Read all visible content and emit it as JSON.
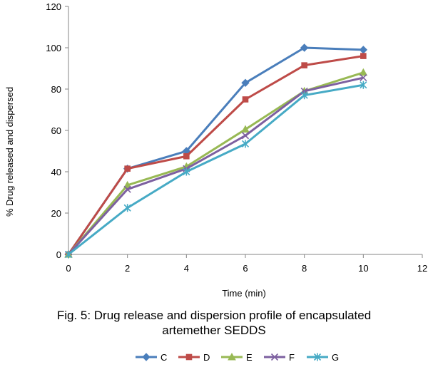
{
  "chart_data": {
    "type": "line",
    "xlabel": "Time (min)",
    "ylabel": "% Drug released and dispersed",
    "xlim": [
      0,
      12
    ],
    "ylim": [
      0,
      120
    ],
    "x_ticks": [
      0,
      2,
      4,
      6,
      8,
      10,
      12
    ],
    "y_ticks": [
      0,
      20,
      40,
      60,
      80,
      100,
      120
    ],
    "grid": false,
    "legend_position": "bottom",
    "x": [
      0,
      2,
      4,
      6,
      8,
      10
    ],
    "series": [
      {
        "name": "C",
        "color": "#4a7ebb",
        "marker": "diamond",
        "values": [
          0,
          41.5,
          50,
          83,
          100,
          99
        ]
      },
      {
        "name": "D",
        "color": "#be4b48",
        "marker": "square",
        "values": [
          0,
          41.5,
          47.5,
          75,
          91.5,
          96
        ]
      },
      {
        "name": "E",
        "color": "#98b954",
        "marker": "triangle",
        "values": [
          0,
          33.5,
          42.5,
          60.5,
          79,
          88
        ]
      },
      {
        "name": "F",
        "color": "#7d60a0",
        "marker": "x",
        "values": [
          0,
          31.5,
          41.5,
          57.5,
          79,
          85.5
        ]
      },
      {
        "name": "G",
        "color": "#46aac5",
        "marker": "star",
        "values": [
          0,
          22.5,
          40,
          53.5,
          77,
          82
        ]
      }
    ]
  },
  "caption": {
    "line1": "Fig. 5: Drug release and dispersion profile of encapsulated",
    "line2": "artemether SEDDS"
  }
}
